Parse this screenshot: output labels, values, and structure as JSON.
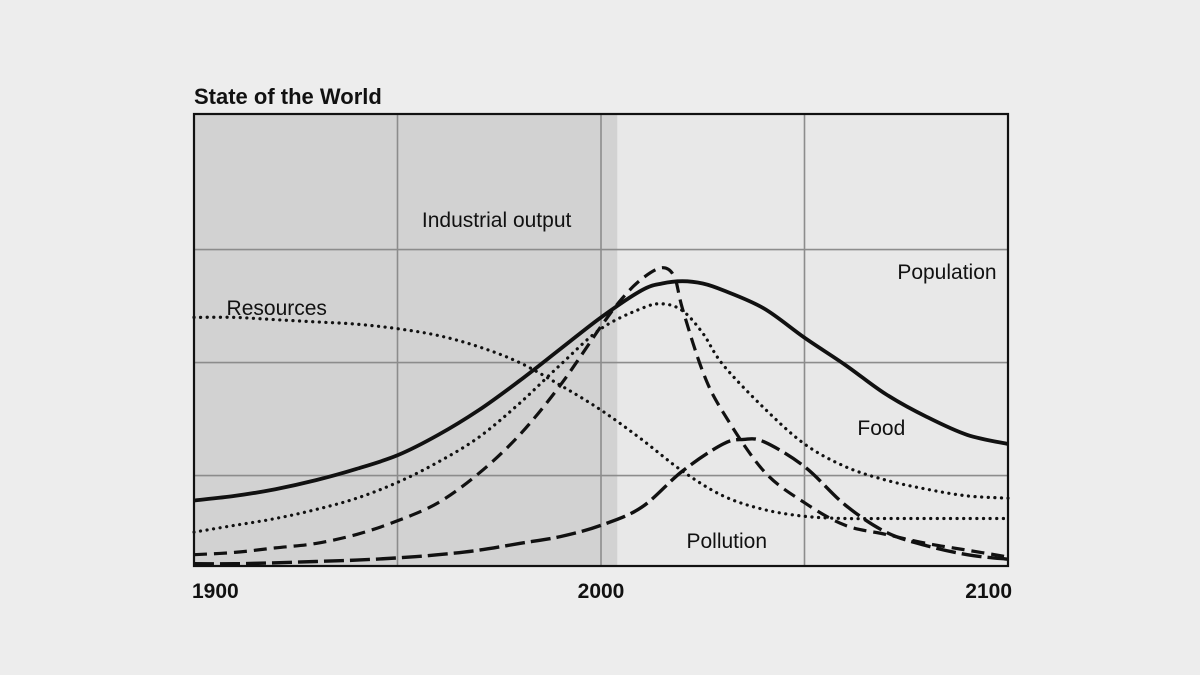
{
  "chart_data": {
    "type": "line",
    "title": "State of the World",
    "xlabel": "",
    "ylabel": "",
    "xlim": [
      1900,
      2100
    ],
    "ylim": [
      0,
      100
    ],
    "x_ticks": [
      "1900",
      "2000",
      "2100"
    ],
    "grid": true,
    "legend": "inline labels",
    "shaded_region": [
      1900,
      2004
    ],
    "colors": {
      "background": "#ededed",
      "shade": "#d2d2d2",
      "plot_bg": "#e8e8e8",
      "ink": "#111111",
      "grid": "#8c8c8c"
    },
    "series": [
      {
        "name": "Population",
        "style": "solid",
        "x": [
          1900,
          1910,
          1920,
          1930,
          1940,
          1950,
          1960,
          1970,
          1980,
          1990,
          2000,
          2010,
          2015,
          2020,
          2025,
          2030,
          2040,
          2050,
          2060,
          2070,
          2080,
          2090,
          2100
        ],
        "y": [
          14.5,
          15.5,
          17,
          19,
          21.5,
          24.5,
          29,
          34.5,
          41,
          48,
          55,
          61,
          62.5,
          63,
          62.5,
          61,
          57,
          50.5,
          44.5,
          38,
          33,
          29,
          27
        ]
      },
      {
        "name": "Industrial output",
        "style": "dashed",
        "x": [
          1900,
          1910,
          1920,
          1930,
          1940,
          1950,
          1960,
          1970,
          1980,
          1990,
          2000,
          2005,
          2010,
          2015,
          2018,
          2020,
          2025,
          2030,
          2040,
          2050,
          2060,
          2070,
          2080,
          2090,
          2100
        ],
        "y": [
          2.5,
          3,
          4,
          5,
          7,
          10,
          14,
          20.5,
          29,
          40,
          53,
          59,
          63.5,
          66,
          64,
          57,
          43,
          34,
          21,
          14,
          9,
          7,
          5,
          3.5,
          2
        ]
      },
      {
        "name": "Food",
        "style": "dotted",
        "x": [
          1900,
          1910,
          1920,
          1930,
          1940,
          1950,
          1960,
          1970,
          1980,
          1990,
          2000,
          2010,
          2015,
          2020,
          2025,
          2030,
          2040,
          2050,
          2060,
          2070,
          2080,
          2090,
          2100
        ],
        "y": [
          7.5,
          9,
          10.5,
          12.5,
          15,
          18.5,
          23,
          28.5,
          36,
          44.5,
          52.5,
          57,
          58,
          56.5,
          51.5,
          44.5,
          35,
          27,
          22,
          19,
          17,
          15.5,
          15
        ]
      },
      {
        "name": "Resources",
        "style": "dotted",
        "x": [
          1900,
          1910,
          1920,
          1930,
          1940,
          1950,
          1960,
          1970,
          1980,
          1990,
          2000,
          2010,
          2020,
          2030,
          2040,
          2050,
          2060,
          2070,
          2080,
          2090,
          2100
        ],
        "y": [
          55,
          55,
          54.5,
          54,
          53.5,
          52.5,
          51,
          48.5,
          45,
          40,
          34.5,
          28,
          21,
          15.5,
          12.5,
          11,
          10.5,
          10.5,
          10.5,
          10.5,
          10.5
        ]
      },
      {
        "name": "Pollution",
        "style": "long-dashed",
        "x": [
          1900,
          1910,
          1920,
          1930,
          1940,
          1950,
          1960,
          1970,
          1980,
          1990,
          2000,
          2010,
          2020,
          2030,
          2035,
          2040,
          2050,
          2060,
          2070,
          2080,
          2090,
          2100
        ],
        "y": [
          0.5,
          0.5,
          0.7,
          1,
          1.3,
          1.8,
          2.5,
          3.5,
          5,
          6.5,
          9,
          13,
          21,
          27,
          28,
          27.5,
          22,
          13.5,
          7.5,
          4.5,
          2.5,
          1.5
        ]
      }
    ],
    "labels": [
      {
        "text": "Industrial output",
        "series": "Industrial output"
      },
      {
        "text": "Population",
        "series": "Population"
      },
      {
        "text": "Resources",
        "series": "Resources"
      },
      {
        "text": "Food",
        "series": "Food"
      },
      {
        "text": "Pollution",
        "series": "Pollution"
      }
    ]
  }
}
